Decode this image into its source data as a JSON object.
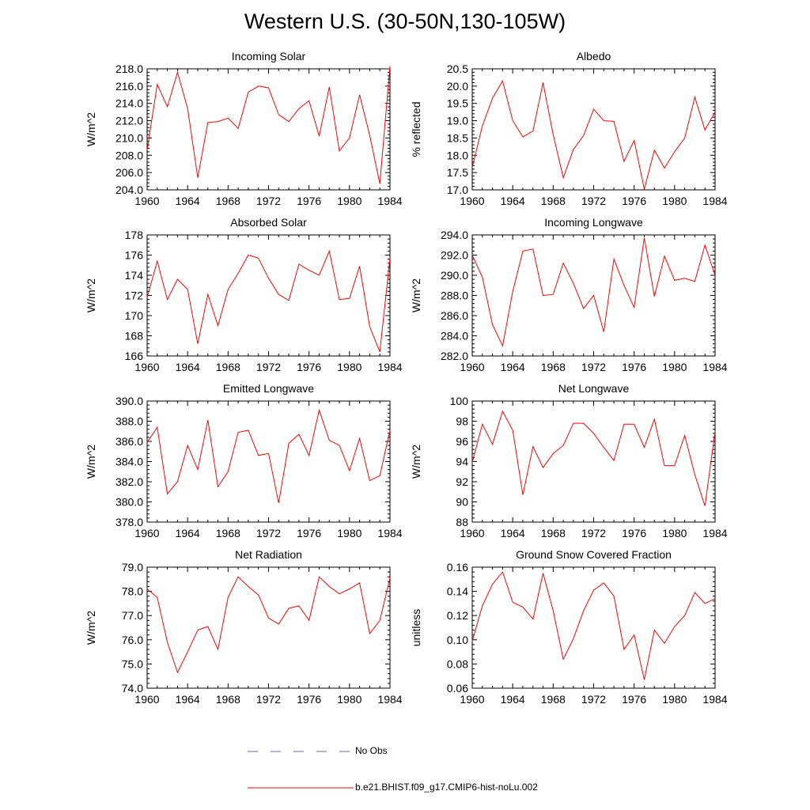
{
  "title": "Western U.S. (30-50N,130-105W)",
  "legend": {
    "obs_label": "No Obs",
    "obs_color": "#6666cc",
    "model_label": "b.e21.BHIST.f09_g17.CMIP6-hist-noLu.002",
    "model_color": "#ff0000"
  },
  "chart_data": [
    {
      "type": "line",
      "title": "Incoming Solar",
      "xlabel": "",
      "ylabel": "W/m^2",
      "xlim": [
        1960,
        1984
      ],
      "ylim": [
        204.0,
        218.0
      ],
      "xticks": [
        1960,
        1964,
        1968,
        1972,
        1976,
        1980,
        1984
      ],
      "yticks": [
        "204.0",
        "206.0",
        "208.0",
        "210.0",
        "212.0",
        "214.0",
        "216.0",
        "218.0"
      ],
      "x": [
        1960,
        1961,
        1962,
        1963,
        1964,
        1965,
        1966,
        1967,
        1968,
        1969,
        1970,
        1971,
        1972,
        1973,
        1974,
        1975,
        1976,
        1977,
        1978,
        1979,
        1980,
        1981,
        1982,
        1983,
        1984
      ],
      "series": [
        {
          "name": "b.e21.BHIST.f09_g17.CMIP6-hist-noLu.002",
          "values": [
            208.6,
            216.2,
            213.6,
            217.6,
            213.4,
            205.4,
            211.8,
            211.9,
            212.3,
            211.1,
            215.3,
            216.0,
            215.8,
            212.7,
            211.9,
            213.4,
            214.3,
            210.2,
            215.9,
            208.5,
            210.0,
            215.0,
            210.3,
            204.7,
            218.3
          ]
        }
      ]
    },
    {
      "type": "line",
      "title": "Albedo",
      "xlabel": "",
      "ylabel": "% reflected",
      "xlim": [
        1960,
        1984
      ],
      "ylim": [
        17.0,
        20.5
      ],
      "xticks": [
        1960,
        1964,
        1968,
        1972,
        1976,
        1980,
        1984
      ],
      "yticks": [
        "17.0",
        "17.5",
        "18.0",
        "18.5",
        "19.0",
        "19.5",
        "20.0",
        "20.5"
      ],
      "x": [
        1960,
        1961,
        1962,
        1963,
        1964,
        1965,
        1966,
        1967,
        1968,
        1969,
        1970,
        1971,
        1972,
        1973,
        1974,
        1975,
        1976,
        1977,
        1978,
        1979,
        1980,
        1981,
        1982,
        1983,
        1984
      ],
      "series": [
        {
          "name": "b.e21.BHIST.f09_g17.CMIP6-hist-noLu.002",
          "values": [
            17.65,
            18.85,
            19.65,
            20.15,
            19.0,
            18.53,
            18.7,
            20.1,
            18.6,
            17.35,
            18.17,
            18.57,
            19.33,
            19.0,
            18.98,
            17.82,
            18.43,
            17.02,
            18.15,
            17.63,
            18.1,
            18.5,
            19.68,
            18.73,
            19.25
          ]
        }
      ]
    },
    {
      "type": "line",
      "title": "Absorbed Solar",
      "xlabel": "",
      "ylabel": "W/m^2",
      "xlim": [
        1960,
        1984
      ],
      "ylim": [
        166,
        178
      ],
      "xticks": [
        1960,
        1964,
        1968,
        1972,
        1976,
        1980,
        1984
      ],
      "yticks": [
        "166",
        "168",
        "170",
        "172",
        "174",
        "176",
        "178"
      ],
      "x": [
        1960,
        1961,
        1962,
        1963,
        1964,
        1965,
        1966,
        1967,
        1968,
        1969,
        1970,
        1971,
        1972,
        1973,
        1974,
        1975,
        1976,
        1977,
        1978,
        1979,
        1980,
        1981,
        1982,
        1983,
        1984
      ],
      "series": [
        {
          "name": "b.e21.BHIST.f09_g17.CMIP6-hist-noLu.002",
          "values": [
            171.8,
            175.4,
            171.6,
            173.6,
            172.6,
            167.2,
            172.1,
            169.0,
            172.6,
            174.2,
            176.0,
            175.7,
            173.7,
            172.1,
            171.5,
            175.1,
            174.5,
            174.0,
            176.4,
            171.6,
            171.7,
            174.9,
            168.9,
            166.4,
            175.7
          ]
        }
      ]
    },
    {
      "type": "line",
      "title": "Incoming Longwave",
      "xlabel": "",
      "ylabel": "W/m^2",
      "xlim": [
        1960,
        1984
      ],
      "ylim": [
        282.0,
        294.0
      ],
      "xticks": [
        1960,
        1964,
        1968,
        1972,
        1976,
        1980,
        1984
      ],
      "yticks": [
        "282.0",
        "284.0",
        "286.0",
        "288.0",
        "290.0",
        "292.0",
        "294.0"
      ],
      "x": [
        1960,
        1961,
        1962,
        1963,
        1964,
        1965,
        1966,
        1967,
        1968,
        1969,
        1970,
        1971,
        1972,
        1973,
        1974,
        1975,
        1976,
        1977,
        1978,
        1979,
        1980,
        1981,
        1982,
        1983,
        1984
      ],
      "series": [
        {
          "name": "b.e21.BHIST.f09_g17.CMIP6-hist-noLu.002",
          "values": [
            292.0,
            289.8,
            285.1,
            283.0,
            288.4,
            292.4,
            292.6,
            288.0,
            288.1,
            291.2,
            289.2,
            286.7,
            288.0,
            284.4,
            291.6,
            289.0,
            286.8,
            293.7,
            287.9,
            291.9,
            289.5,
            289.7,
            289.4,
            293.0,
            290.0
          ]
        }
      ]
    },
    {
      "type": "line",
      "title": "Emitted Longwave",
      "xlabel": "",
      "ylabel": "W/m^2",
      "xlim": [
        1960,
        1984
      ],
      "ylim": [
        378.0,
        390.0
      ],
      "xticks": [
        1960,
        1964,
        1968,
        1972,
        1976,
        1980,
        1984
      ],
      "yticks": [
        "378.0",
        "380.0",
        "382.0",
        "384.0",
        "386.0",
        "388.0",
        "390.0"
      ],
      "x": [
        1960,
        1961,
        1962,
        1963,
        1964,
        1965,
        1966,
        1967,
        1968,
        1969,
        1970,
        1971,
        1972,
        1973,
        1974,
        1975,
        1976,
        1977,
        1978,
        1979,
        1980,
        1981,
        1982,
        1983,
        1984
      ],
      "series": [
        {
          "name": "b.e21.BHIST.f09_g17.CMIP6-hist-noLu.002",
          "values": [
            385.9,
            387.4,
            380.8,
            382.0,
            385.6,
            383.2,
            388.1,
            381.5,
            383.0,
            386.9,
            387.1,
            384.6,
            384.8,
            379.9,
            385.8,
            386.7,
            384.6,
            389.1,
            386.1,
            385.6,
            383.1,
            386.3,
            382.1,
            382.6,
            387.1
          ]
        }
      ]
    },
    {
      "type": "line",
      "title": "Net Longwave",
      "xlabel": "",
      "ylabel": "W/m^2",
      "xlim": [
        1960,
        1984
      ],
      "ylim": [
        88,
        100
      ],
      "xticks": [
        1960,
        1964,
        1968,
        1972,
        1976,
        1980,
        1984
      ],
      "yticks": [
        "88",
        "90",
        "92",
        "94",
        "96",
        "98",
        "100"
      ],
      "x": [
        1960,
        1961,
        1962,
        1963,
        1964,
        1965,
        1966,
        1967,
        1968,
        1969,
        1970,
        1971,
        1972,
        1973,
        1974,
        1975,
        1976,
        1977,
        1978,
        1979,
        1980,
        1981,
        1982,
        1983,
        1984
      ],
      "series": [
        {
          "name": "b.e21.BHIST.f09_g17.CMIP6-hist-noLu.002",
          "values": [
            93.9,
            97.7,
            95.7,
            99.0,
            97.1,
            90.7,
            95.5,
            93.4,
            94.8,
            95.6,
            97.8,
            97.8,
            96.8,
            95.4,
            94.1,
            97.7,
            97.7,
            95.4,
            98.2,
            93.6,
            93.6,
            96.6,
            92.7,
            89.6,
            97.0
          ]
        }
      ]
    },
    {
      "type": "line",
      "title": "Net Radiation",
      "xlabel": "",
      "ylabel": "W/m^2",
      "xlim": [
        1960,
        1984
      ],
      "ylim": [
        74.0,
        79.0
      ],
      "xticks": [
        1960,
        1964,
        1968,
        1972,
        1976,
        1980,
        1984
      ],
      "yticks": [
        "74.0",
        "75.0",
        "76.0",
        "77.0",
        "78.0",
        "79.0"
      ],
      "x": [
        1960,
        1961,
        1962,
        1963,
        1964,
        1965,
        1966,
        1967,
        1968,
        1969,
        1970,
        1971,
        1972,
        1973,
        1974,
        1975,
        1976,
        1977,
        1978,
        1979,
        1980,
        1981,
        1982,
        1983,
        1984
      ],
      "series": [
        {
          "name": "b.e21.BHIST.f09_g17.CMIP6-hist-noLu.002",
          "values": [
            78.1,
            77.75,
            75.9,
            74.65,
            75.5,
            76.4,
            76.55,
            75.6,
            77.75,
            78.6,
            78.2,
            77.85,
            76.9,
            76.65,
            77.3,
            77.4,
            76.8,
            78.6,
            78.2,
            77.9,
            78.1,
            78.35,
            76.25,
            76.8,
            78.55
          ]
        }
      ]
    },
    {
      "type": "line",
      "title": "Ground Snow Covered Fraction",
      "xlabel": "",
      "ylabel": "unitless",
      "xlim": [
        1960,
        1984
      ],
      "ylim": [
        0.06,
        0.16
      ],
      "xticks": [
        1960,
        1964,
        1968,
        1972,
        1976,
        1980,
        1984
      ],
      "yticks": [
        "0.06",
        "0.08",
        "0.10",
        "0.12",
        "0.14",
        "0.16"
      ],
      "x": [
        1960,
        1961,
        1962,
        1963,
        1964,
        1965,
        1966,
        1967,
        1968,
        1969,
        1970,
        1971,
        1972,
        1973,
        1974,
        1975,
        1976,
        1977,
        1978,
        1979,
        1980,
        1981,
        1982,
        1983,
        1984
      ],
      "series": [
        {
          "name": "b.e21.BHIST.f09_g17.CMIP6-hist-noLu.002",
          "values": [
            0.099,
            0.128,
            0.146,
            0.156,
            0.131,
            0.127,
            0.117,
            0.155,
            0.124,
            0.084,
            0.101,
            0.124,
            0.141,
            0.147,
            0.136,
            0.092,
            0.104,
            0.067,
            0.108,
            0.097,
            0.111,
            0.12,
            0.139,
            0.13,
            0.134
          ]
        }
      ]
    }
  ]
}
